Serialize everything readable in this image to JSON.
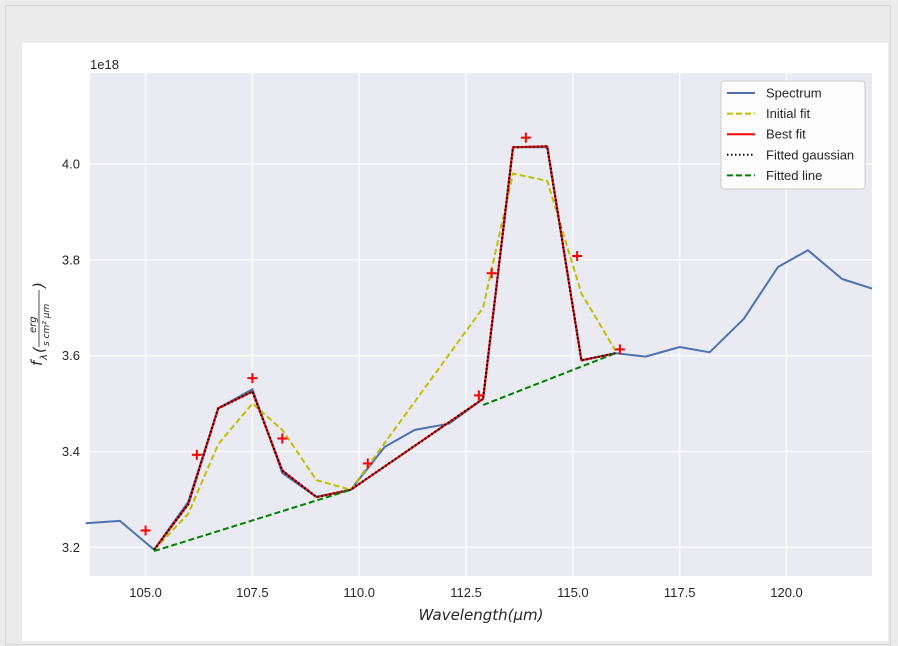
{
  "chart_data": {
    "type": "line",
    "xlabel": "Wavelength(μm)",
    "ylabel_main": "f",
    "ylabel_sub": "λ",
    "ylabel_num": "erg",
    "ylabel_den": "s cm² μm",
    "offset_text": "1e18",
    "xlim": [
      103.7,
      122.0
    ],
    "ylim": [
      3.14,
      4.19
    ],
    "xticks": [
      105.0,
      107.5,
      110.0,
      112.5,
      115.0,
      117.5,
      120.0
    ],
    "xtick_labels": [
      "105.0",
      "107.5",
      "110.0",
      "112.5",
      "115.0",
      "117.5",
      "120.0"
    ],
    "yticks": [
      3.2,
      3.4,
      3.6,
      3.8,
      4.0
    ],
    "ytick_labels": [
      "3.2",
      "3.4",
      "3.6",
      "3.8",
      "4.0"
    ],
    "grid": true,
    "legend_position": "upper right",
    "series": [
      {
        "name": "Spectrum",
        "color": "#4c72b0",
        "dash": "solid",
        "x": [
          103.6,
          104.4,
          105.2,
          106.0,
          106.7,
          107.5,
          108.2,
          109.0,
          109.8,
          110.6,
          111.3,
          112.1,
          112.9,
          113.6,
          114.4,
          115.2,
          116.0,
          116.7,
          117.5,
          118.2,
          119.0,
          119.8,
          120.5,
          121.3,
          122.0
        ],
        "y": [
          3.25,
          3.255,
          3.195,
          3.295,
          3.49,
          3.53,
          3.355,
          3.305,
          3.32,
          3.41,
          3.445,
          3.458,
          3.51,
          4.035,
          4.035,
          3.59,
          3.605,
          3.598,
          3.618,
          3.607,
          3.677,
          3.785,
          3.82,
          3.76,
          3.74
        ]
      },
      {
        "name": "Initial fit",
        "color": "#bfbf00",
        "dash": "dashed",
        "x": [
          105.2,
          106.0,
          106.7,
          107.5,
          108.2,
          109.0,
          109.8,
          112.9,
          113.6,
          114.4,
          115.2,
          116.0
        ],
        "y": [
          3.195,
          3.27,
          3.415,
          3.5,
          3.445,
          3.34,
          3.32,
          3.7,
          3.98,
          3.965,
          3.73,
          3.61
        ]
      },
      {
        "name": "Best fit",
        "color": "#ff0000",
        "dash": "solid",
        "x": [
          105.2,
          106.0,
          106.7,
          107.5,
          108.2,
          109.0,
          109.8,
          112.9,
          113.6,
          114.4,
          115.2,
          116.0
        ],
        "y": [
          3.195,
          3.29,
          3.49,
          3.525,
          3.36,
          3.305,
          3.32,
          3.51,
          4.035,
          4.037,
          3.59,
          3.605
        ]
      },
      {
        "name": "Fitted gaussian",
        "color": "#000000",
        "dash": "dotted",
        "x": [
          105.2,
          106.0,
          106.7,
          107.5,
          108.2,
          109.0,
          109.8,
          112.9,
          113.6,
          114.4,
          115.2,
          116.0
        ],
        "y": [
          3.195,
          3.29,
          3.49,
          3.525,
          3.36,
          3.305,
          3.32,
          3.51,
          4.035,
          4.037,
          3.59,
          3.605
        ]
      },
      {
        "name": "Fitted line",
        "color": "#008000",
        "dash": "dashed",
        "segments": [
          {
            "x": [
              105.2,
              109.8
            ],
            "y": [
              3.192,
              3.32
            ]
          },
          {
            "x": [
              112.9,
              116.0
            ],
            "y": [
              3.497,
              3.605
            ]
          }
        ]
      }
    ],
    "markers": {
      "color": "#ff0000",
      "symbol": "+",
      "x": [
        105.0,
        106.2,
        107.5,
        108.2,
        110.2,
        112.8,
        113.1,
        113.9,
        115.1,
        116.1
      ],
      "y": [
        3.235,
        3.393,
        3.553,
        3.427,
        3.375,
        3.517,
        3.772,
        4.055,
        3.808,
        3.613
      ]
    }
  }
}
